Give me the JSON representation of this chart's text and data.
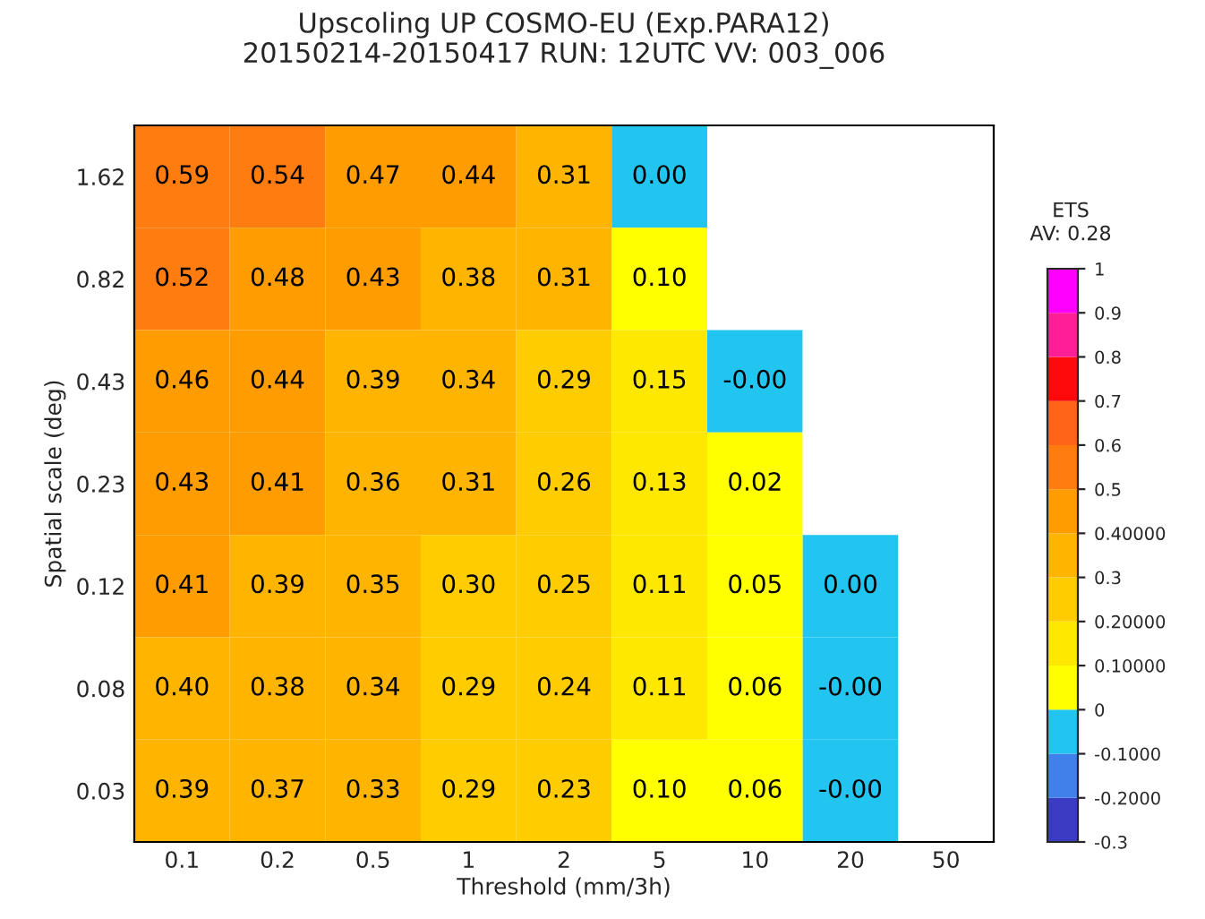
{
  "chart_data": {
    "type": "heatmap",
    "title": "Upscoling UP COSMO-EU (Exp.PARA12)",
    "subtitle": "20150214-20150417 RUN: 12UTC VV: 003_006",
    "xlabel": "Threshold (mm/3h)",
    "ylabel": "Spatial scale (deg)",
    "clabel": "ETS",
    "annotations": [
      "AV: 0.28"
    ],
    "categories": [
      "0.1",
      "0.2",
      "0.5",
      "1",
      "2",
      "5",
      "10",
      "20",
      "50"
    ],
    "y_categories": [
      "1.62",
      "0.82",
      "0.43",
      "0.23",
      "0.12",
      "0.08",
      "0.03"
    ],
    "cells": [
      [
        0.59,
        0.54,
        0.47,
        0.44,
        0.31,
        0.0,
        null,
        null,
        null
      ],
      [
        0.52,
        0.48,
        0.43,
        0.38,
        0.31,
        0.1,
        null,
        null,
        null
      ],
      [
        0.46,
        0.44,
        0.39,
        0.34,
        0.29,
        0.15,
        0.0,
        null,
        null
      ],
      [
        0.43,
        0.41,
        0.36,
        0.31,
        0.26,
        0.13,
        0.02,
        null,
        null
      ],
      [
        0.41,
        0.39,
        0.35,
        0.3,
        0.25,
        0.11,
        0.05,
        0.0,
        null
      ],
      [
        0.4,
        0.38,
        0.34,
        0.29,
        0.24,
        0.11,
        0.06,
        0.0,
        null
      ],
      [
        0.39,
        0.37,
        0.33,
        0.29,
        0.23,
        0.1,
        0.06,
        0.0,
        null
      ]
    ],
    "cell_labels": [
      [
        "0.59",
        "0.54",
        "0.47",
        "0.44",
        "0.31",
        "0.00",
        null,
        null,
        null
      ],
      [
        "0.52",
        "0.48",
        "0.43",
        "0.38",
        "0.31",
        "0.10",
        null,
        null,
        null
      ],
      [
        "0.46",
        "0.44",
        "0.39",
        "0.34",
        "0.29",
        "0.15",
        "-0.00",
        null,
        null
      ],
      [
        "0.43",
        "0.41",
        "0.36",
        "0.31",
        "0.26",
        "0.13",
        "0.02",
        null,
        null
      ],
      [
        "0.41",
        "0.39",
        "0.35",
        "0.30",
        "0.25",
        "0.11",
        "0.05",
        "0.00",
        null
      ],
      [
        "0.40",
        "0.38",
        "0.34",
        "0.29",
        "0.24",
        "0.11",
        "0.06",
        "-0.00",
        null
      ],
      [
        "0.39",
        "0.37",
        "0.33",
        "0.29",
        "0.23",
        "0.10",
        "0.06",
        "-0.00",
        null
      ]
    ],
    "clim": [
      -0.3,
      1
    ],
    "cticks": [
      {
        "value": -0.3,
        "label": "-0.3"
      },
      {
        "value": -0.2,
        "label": "-0.2000"
      },
      {
        "value": -0.1,
        "label": "-0.1000"
      },
      {
        "value": 0,
        "label": "0"
      },
      {
        "value": 0.1,
        "label": "0.10000"
      },
      {
        "value": 0.2,
        "label": "0.20000"
      },
      {
        "value": 0.3,
        "label": "0.3"
      },
      {
        "value": 0.4,
        "label": "0.40000"
      },
      {
        "value": 0.5,
        "label": "0.5"
      },
      {
        "value": 0.6,
        "label": "0.6"
      },
      {
        "value": 0.7,
        "label": "0.7"
      },
      {
        "value": 0.8,
        "label": "0.8"
      },
      {
        "value": 0.9,
        "label": "0.9"
      },
      {
        "value": 1,
        "label": "1"
      }
    ]
  }
}
